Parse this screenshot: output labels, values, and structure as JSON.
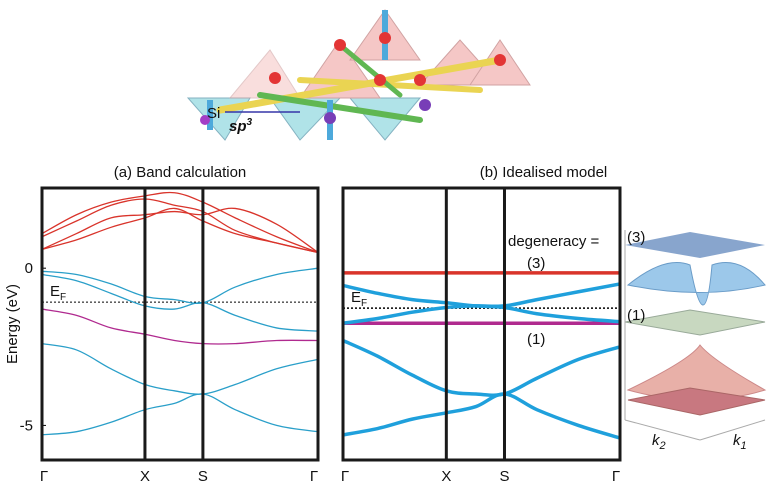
{
  "figure": {
    "structure": {
      "atom_label": "Si",
      "orbital_label": "sp",
      "orbital_sup": "3"
    },
    "surface": {
      "labels": [
        "(3)",
        "(1)"
      ],
      "axis_x": "k",
      "axis_x_sub": "1",
      "axis_y": "k",
      "axis_y_sub": "2"
    }
  },
  "chart_data": [
    {
      "type": "line",
      "title": "(a) Band calculation",
      "y_label": "Energy (eV)",
      "x": [
        0,
        0.125,
        0.25,
        0.373,
        0.48,
        0.583,
        0.7,
        0.85,
        1
      ],
      "xlim": [
        0,
        1
      ],
      "ylim": [
        -6.1,
        2.55
      ],
      "xticks": [
        {
          "value": 0,
          "label": "Γ"
        },
        {
          "value": 0.373,
          "label": "X"
        },
        {
          "value": 0.583,
          "label": "S"
        },
        {
          "value": 1,
          "label": "Γ"
        }
      ],
      "yticks": [
        0,
        -5
      ],
      "fermi": {
        "value": -1.08,
        "label": "E",
        "sub": "F"
      },
      "series": [
        {
          "color": "#d9342b",
          "values": [
            0.6,
            0.9,
            1.3,
            1.6,
            1.9,
            1.5,
            1.1,
            0.8,
            0.5
          ]
        },
        {
          "color": "#d9342b",
          "values": [
            0.6,
            1.1,
            1.6,
            1.7,
            1.8,
            1.7,
            1.9,
            1.4,
            0.5
          ]
        },
        {
          "color": "#d9342b",
          "values": [
            1.0,
            1.5,
            2.0,
            2.2,
            2.0,
            1.8,
            1.2,
            0.8,
            0.5
          ]
        },
        {
          "color": "#d9342b",
          "values": [
            1.1,
            1.7,
            2.1,
            2.3,
            2.4,
            2.1,
            1.6,
            1.0,
            0.5
          ]
        },
        {
          "color": "#2a9fc9",
          "values": [
            -0.1,
            -0.2,
            -0.5,
            -0.9,
            -1.0,
            -1.1,
            -0.6,
            -0.2,
            0.0
          ]
        },
        {
          "color": "#2a9fc9",
          "values": [
            -0.2,
            -0.4,
            -0.8,
            -1.2,
            -1.3,
            -1.1,
            -1.5,
            -1.9,
            -2.0
          ]
        },
        {
          "color": "#b02a8f",
          "values": [
            -1.3,
            -1.5,
            -1.9,
            -2.1,
            -2.3,
            -2.4,
            -2.4,
            -2.3,
            -2.3
          ]
        },
        {
          "color": "#2a9fc9",
          "values": [
            -2.4,
            -2.6,
            -3.2,
            -3.7,
            -3.9,
            -4.0,
            -3.7,
            -3.2,
            -2.9
          ]
        },
        {
          "color": "#2a9fc9",
          "values": [
            -5.3,
            -5.2,
            -4.9,
            -4.5,
            -4.3,
            -4.0,
            -4.5,
            -5.0,
            -5.2
          ]
        }
      ]
    },
    {
      "type": "line",
      "title": "(b) Idealised model",
      "x": [
        0,
        0.125,
        0.25,
        0.373,
        0.48,
        0.583,
        0.7,
        0.85,
        1
      ],
      "xlim": [
        0,
        1
      ],
      "ylim": [
        -6.1,
        2.55
      ],
      "xticks": [
        {
          "value": 0,
          "label": "Γ"
        },
        {
          "value": 0.373,
          "label": "X"
        },
        {
          "value": 0.583,
          "label": "S"
        },
        {
          "value": 1,
          "label": "Γ"
        }
      ],
      "fermi": {
        "value": -1.27,
        "label": "E",
        "sub": "F"
      },
      "annotations": [
        "degeneracy =",
        "(3)",
        "(1)"
      ],
      "series": [
        {
          "color": "#d9342b",
          "values": [
            -0.15,
            -0.15,
            -0.15,
            -0.15,
            -0.15,
            -0.15,
            -0.15,
            -0.15,
            -0.15
          ]
        },
        {
          "color": "#b02a8f",
          "values": [
            -1.75,
            -1.75,
            -1.75,
            -1.75,
            -1.75,
            -1.75,
            -1.75,
            -1.75,
            -1.75
          ]
        },
        {
          "color": "#1fa0dc",
          "values": [
            -0.55,
            -0.8,
            -1.0,
            -1.1,
            -1.2,
            -1.25,
            -1.45,
            -1.6,
            -1.7
          ]
        },
        {
          "color": "#1fa0dc",
          "values": [
            -1.75,
            -1.6,
            -1.4,
            -1.25,
            -1.2,
            -1.2,
            -1.0,
            -0.75,
            -0.5
          ]
        },
        {
          "color": "#1fa0dc",
          "values": [
            -2.3,
            -2.8,
            -3.4,
            -3.9,
            -4.0,
            -4.0,
            -3.5,
            -2.9,
            -2.5
          ]
        },
        {
          "color": "#1fa0dc",
          "values": [
            -5.3,
            -5.1,
            -4.8,
            -4.6,
            -4.4,
            -4.0,
            -4.5,
            -5.0,
            -5.4
          ]
        }
      ]
    }
  ]
}
